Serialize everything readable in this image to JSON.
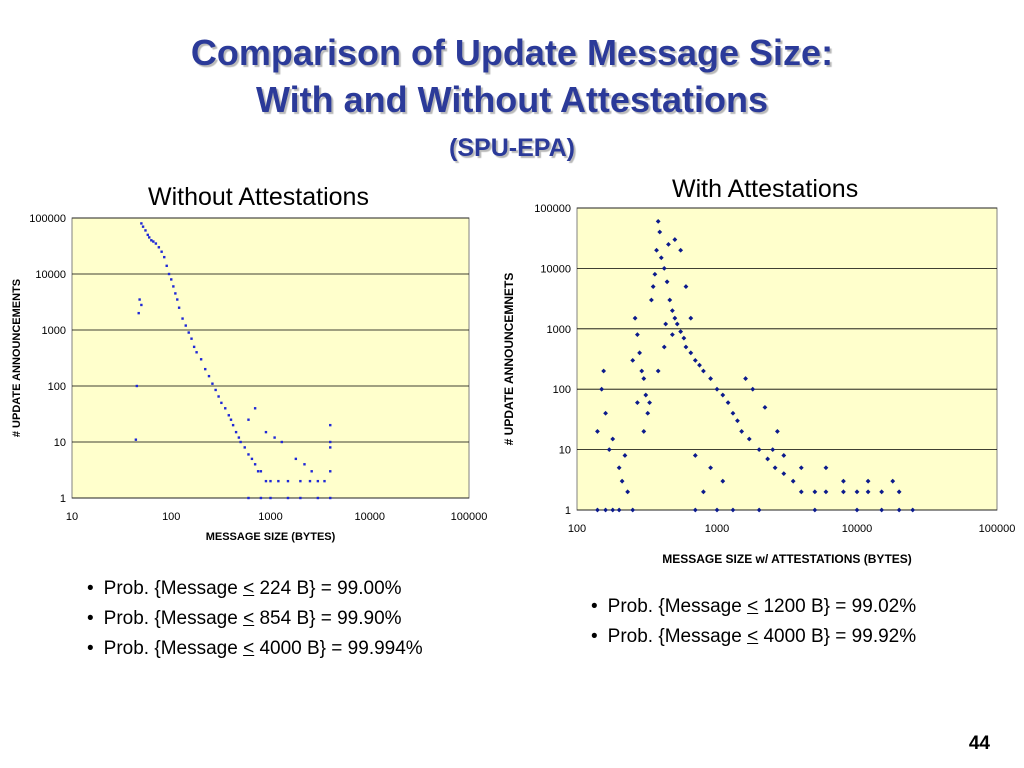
{
  "slide": {
    "title_line1": "Comparison of Update Message Size:",
    "title_line2": "With and Without Attestations",
    "subtitle": "(SPU-EPA)",
    "page_number": "44"
  },
  "left_panel": {
    "heading": "Without Attestations",
    "bullets": [
      {
        "prefix": "Prob. {Message ",
        "op": "<",
        "suffix": " 224 B} = 99.00%"
      },
      {
        "prefix": "Prob. {Message ",
        "op": "<",
        "suffix": " 854 B} = 99.90%"
      },
      {
        "prefix": "Prob. {Message ",
        "op": "<",
        "suffix": " 4000 B} = 99.994%"
      }
    ]
  },
  "right_panel": {
    "heading": "With Attestations",
    "bullets": [
      {
        "prefix": "Prob. {Message ",
        "op": "<",
        "suffix": " 1200 B} = 99.02%"
      },
      {
        "prefix": "Prob. {Message ",
        "op": "<",
        "suffix": " 4000 B} = 99.92%"
      }
    ]
  },
  "colors": {
    "title": "#2b3a99",
    "plot_bg": "#ffffcc",
    "marker_left": "#1f28d6",
    "marker_right": "#0b1a8c"
  },
  "chart_data": [
    {
      "type": "scatter",
      "title": "Without Attestations",
      "xlabel": "MESSAGE SIZE (BYTES)",
      "ylabel": "# UPDATE  ANNOUNCEMENTS",
      "xscale": "log",
      "yscale": "log",
      "xlim": [
        10,
        100000
      ],
      "ylim": [
        1,
        100000
      ],
      "xticks": [
        "10",
        "100",
        "1000",
        "10000",
        "100000"
      ],
      "yticks": [
        "1",
        "10",
        "100",
        "1000",
        "10000",
        "100000"
      ],
      "grid": "horizontal",
      "series": [
        {
          "points": [
            [
              50,
              80000
            ],
            [
              52,
              70000
            ],
            [
              55,
              60000
            ],
            [
              58,
              50000
            ],
            [
              60,
              45000
            ],
            [
              63,
              40000
            ],
            [
              66,
              38000
            ],
            [
              70,
              35000
            ],
            [
              75,
              30000
            ],
            [
              80,
              25000
            ],
            [
              85,
              20000
            ],
            [
              90,
              14000
            ],
            [
              95,
              10000
            ],
            [
              100,
              8000
            ],
            [
              105,
              6000
            ],
            [
              110,
              4500
            ],
            [
              115,
              3500
            ],
            [
              120,
              2500
            ],
            [
              130,
              1600
            ],
            [
              140,
              1200
            ],
            [
              150,
              900
            ],
            [
              160,
              700
            ],
            [
              170,
              500
            ],
            [
              180,
              400
            ],
            [
              200,
              300
            ],
            [
              220,
              200
            ],
            [
              240,
              150
            ],
            [
              260,
              110
            ],
            [
              280,
              85
            ],
            [
              300,
              65
            ],
            [
              320,
              50
            ],
            [
              350,
              40
            ],
            [
              380,
              30
            ],
            [
              400,
              25
            ],
            [
              420,
              20
            ],
            [
              450,
              15
            ],
            [
              480,
              12
            ],
            [
              500,
              10
            ],
            [
              550,
              8
            ],
            [
              600,
              6
            ],
            [
              650,
              5
            ],
            [
              700,
              4
            ],
            [
              750,
              3
            ],
            [
              800,
              3
            ],
            [
              900,
              2
            ],
            [
              1000,
              2
            ],
            [
              1200,
              2
            ],
            [
              1500,
              2
            ],
            [
              2000,
              2
            ],
            [
              2500,
              2
            ],
            [
              3000,
              2
            ],
            [
              3500,
              2
            ],
            [
              4000,
              3
            ],
            [
              4000,
              10
            ],
            [
              4000,
              20
            ],
            [
              4000,
              8
            ],
            [
              1800,
              5
            ],
            [
              2200,
              4
            ],
            [
              2600,
              3
            ],
            [
              1300,
              10
            ],
            [
              48,
              3500
            ],
            [
              50,
              2800
            ],
            [
              47,
              2000
            ],
            [
              45,
              100
            ],
            [
              44,
              11
            ],
            [
              600,
              25
            ],
            [
              900,
              15
            ],
            [
              1100,
              12
            ],
            [
              700,
              40
            ],
            [
              1000,
              1
            ],
            [
              1500,
              1
            ],
            [
              2000,
              1
            ],
            [
              3000,
              1
            ],
            [
              4000,
              1
            ],
            [
              800,
              1
            ],
            [
              600,
              1
            ]
          ]
        }
      ]
    },
    {
      "type": "scatter",
      "title": "With Attestations",
      "xlabel": "MESSAGE SIZE w/ ATTESTATIONS (BYTES)",
      "ylabel": "# UPDATE ANNOUNCEMNETS",
      "xscale": "log",
      "yscale": "log",
      "xlim": [
        100,
        100000
      ],
      "ylim": [
        1,
        100000
      ],
      "xticks": [
        "100",
        "1000",
        "10000",
        "100000"
      ],
      "yticks": [
        "1",
        "10",
        "100",
        "1000",
        "10000",
        "100000"
      ],
      "grid": "horizontal",
      "series": [
        {
          "points": [
            [
              140,
              1
            ],
            [
              160,
              1
            ],
            [
              180,
              1
            ],
            [
              200,
              1
            ],
            [
              250,
              1
            ],
            [
              140,
              20
            ],
            [
              150,
              100
            ],
            [
              155,
              200
            ],
            [
              160,
              40
            ],
            [
              170,
              10
            ],
            [
              180,
              15
            ],
            [
              200,
              5
            ],
            [
              210,
              3
            ],
            [
              220,
              8
            ],
            [
              230,
              2
            ],
            [
              250,
              300
            ],
            [
              260,
              1500
            ],
            [
              270,
              800
            ],
            [
              280,
              400
            ],
            [
              290,
              200
            ],
            [
              300,
              150
            ],
            [
              310,
              80
            ],
            [
              320,
              40
            ],
            [
              330,
              60
            ],
            [
              340,
              3000
            ],
            [
              350,
              5000
            ],
            [
              360,
              8000
            ],
            [
              370,
              20000
            ],
            [
              380,
              60000
            ],
            [
              390,
              40000
            ],
            [
              400,
              15000
            ],
            [
              420,
              10000
            ],
            [
              440,
              6000
            ],
            [
              460,
              3000
            ],
            [
              480,
              2000
            ],
            [
              500,
              1500
            ],
            [
              520,
              1200
            ],
            [
              550,
              900
            ],
            [
              580,
              700
            ],
            [
              600,
              500
            ],
            [
              650,
              400
            ],
            [
              700,
              300
            ],
            [
              750,
              250
            ],
            [
              800,
              200
            ],
            [
              900,
              150
            ],
            [
              1000,
              100
            ],
            [
              1100,
              80
            ],
            [
              1200,
              60
            ],
            [
              1300,
              40
            ],
            [
              1400,
              30
            ],
            [
              1500,
              20
            ],
            [
              1700,
              15
            ],
            [
              2000,
              10
            ],
            [
              2300,
              7
            ],
            [
              2600,
              5
            ],
            [
              3000,
              4
            ],
            [
              3500,
              3
            ],
            [
              4000,
              2
            ],
            [
              5000,
              2
            ],
            [
              6000,
              2
            ],
            [
              8000,
              2
            ],
            [
              10000,
              2
            ],
            [
              12000,
              2
            ],
            [
              15000,
              2
            ],
            [
              20000,
              2
            ],
            [
              20000,
              1
            ],
            [
              25000,
              1
            ],
            [
              15000,
              1
            ],
            [
              10000,
              1
            ],
            [
              5000,
              1
            ],
            [
              2000,
              1
            ],
            [
              1000,
              1
            ],
            [
              700,
              1
            ],
            [
              500,
              30000
            ],
            [
              450,
              25000
            ],
            [
              550,
              20000
            ],
            [
              600,
              5000
            ],
            [
              420,
              500
            ],
            [
              380,
              200
            ],
            [
              430,
              1200
            ],
            [
              480,
              800
            ],
            [
              650,
              1500
            ],
            [
              300,
              20
            ],
            [
              270,
              60
            ],
            [
              800,
              2
            ],
            [
              900,
              5
            ],
            [
              700,
              8
            ],
            [
              1100,
              3
            ],
            [
              1300,
              1
            ],
            [
              2500,
              10
            ],
            [
              3000,
              8
            ],
            [
              4000,
              5
            ],
            [
              6000,
              5
            ],
            [
              8000,
              3
            ],
            [
              12000,
              3
            ],
            [
              18000,
              3
            ],
            [
              1600,
              150
            ],
            [
              1800,
              100
            ],
            [
              2200,
              50
            ],
            [
              2700,
              20
            ]
          ]
        }
      ]
    }
  ]
}
